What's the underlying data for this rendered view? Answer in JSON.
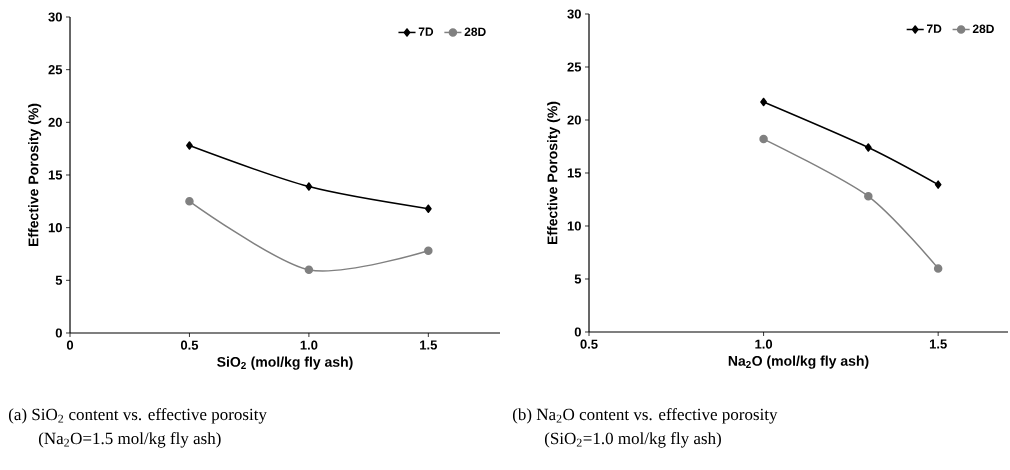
{
  "chart_data": [
    {
      "type": "line",
      "xlabel": "SiO$_{2}$ (mol/kg fly ash)",
      "ylabel": "Effective Porosity (%)",
      "x": [
        0.5,
        1.0,
        1.5
      ],
      "series": [
        {
          "name": "7D",
          "color": "#000000",
          "marker": "diamond",
          "values": [
            17.8,
            13.9,
            11.8
          ]
        },
        {
          "name": "28D",
          "color": "#808080",
          "marker": "circle",
          "values": [
            12.5,
            6.0,
            7.8
          ]
        }
      ],
      "xlim": [
        0,
        1.8
      ],
      "xticks": [
        0,
        0.5,
        {
          "value": 1,
          "label": "1.0"
        },
        1.5
      ],
      "ylim": [
        0,
        30
      ],
      "yticks": [
        0,
        5,
        10,
        15,
        20,
        25,
        30
      ],
      "legend": "top right",
      "annotations": [
        "(a) SiO$_{2}$ content vs. effective porosity",
        "(Na$_{2}$O=1.5 mol/kg fly ash)"
      ]
    },
    {
      "type": "line",
      "xlabel": "Na$_{2}$O (mol/kg fly ash)",
      "ylabel": "Effective Porosity (%)",
      "x": [
        1.0,
        1.3,
        1.5
      ],
      "series": [
        {
          "name": "7D",
          "color": "#000000",
          "marker": "diamond",
          "values": [
            21.7,
            17.4,
            13.9
          ]
        },
        {
          "name": "28D",
          "color": "#808080",
          "marker": "circle",
          "values": [
            18.2,
            12.8,
            6.0
          ]
        }
      ],
      "xlim": [
        0.5,
        1.7
      ],
      "xticks": [
        0.5,
        {
          "value": 1,
          "label": "1.0"
        },
        1.5
      ],
      "ylim": [
        0,
        30
      ],
      "yticks": [
        0,
        5,
        10,
        15,
        20,
        25,
        30
      ],
      "legend": "top right",
      "annotations": [
        "(b) Na$_{2}$O content vs. effective porosity",
        "(SiO$_{2}$=1.0 mol/kg fly ash)"
      ]
    }
  ]
}
